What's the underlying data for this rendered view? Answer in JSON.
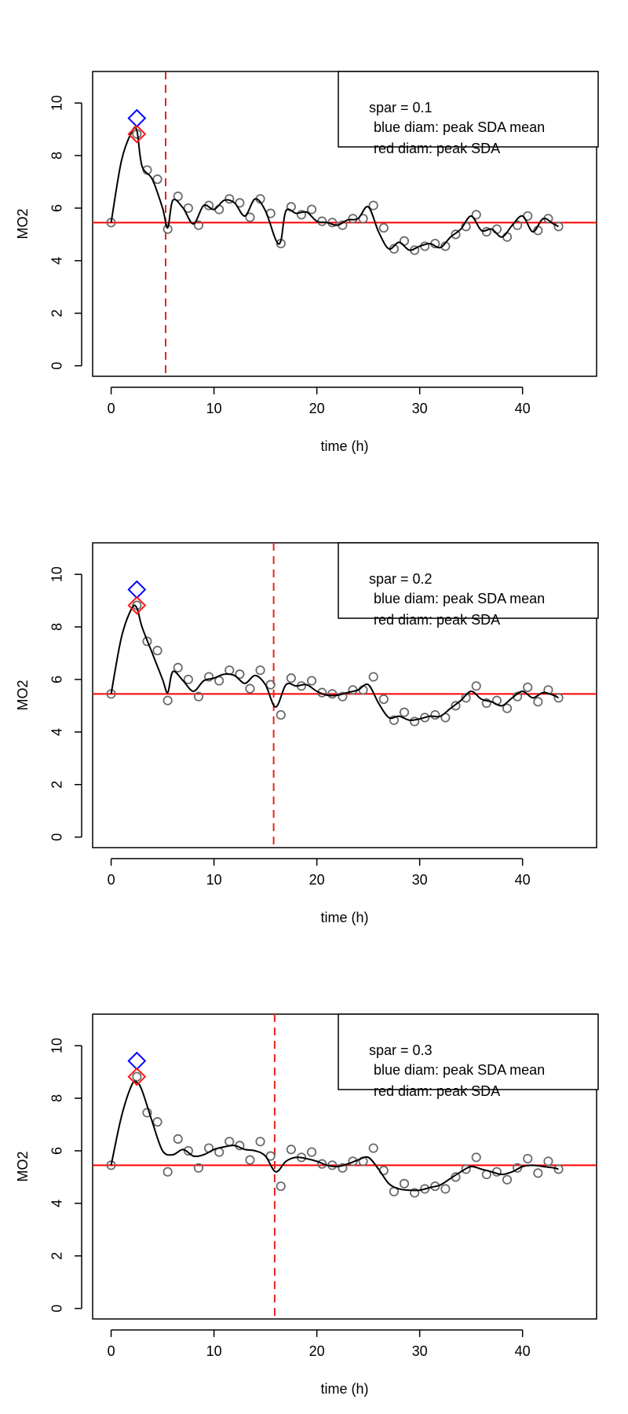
{
  "chart_data": [
    {
      "type": "scatter",
      "xlabel": "time (h)",
      "ylabel": "MO2",
      "xticks": [
        0,
        10,
        20,
        30,
        40
      ],
      "yticks": [
        0,
        2,
        4,
        6,
        8,
        10
      ],
      "xlim": [
        -1.8,
        47.2
      ],
      "ylim": [
        -0.4,
        11.2
      ],
      "baseline": 5.45,
      "vline_x": 5.3,
      "blue_diamond": {
        "x": 2.5,
        "y": 9.42
      },
      "red_diamond": {
        "x": 2.5,
        "y": 8.82
      },
      "legend": {
        "line1": "spar =  0.1",
        "line2": "blue diam: peak SDA mean",
        "line3": "red diam: peak SDA",
        "position": "top-right"
      },
      "smooth": {
        "x": [
          0,
          1,
          2,
          2.5,
          3,
          4,
          5,
          5.5,
          6,
          7,
          8,
          9,
          10,
          11,
          12,
          13,
          14,
          15,
          16,
          16.5,
          17,
          18,
          19,
          20,
          21,
          22,
          23,
          24,
          25,
          26,
          27,
          28,
          29,
          30,
          31,
          32,
          33,
          34,
          35,
          36,
          37,
          38,
          39,
          40,
          41,
          42,
          43,
          43.5
        ],
        "y": [
          5.45,
          7.8,
          8.9,
          8.95,
          7.6,
          7.1,
          6.0,
          5.25,
          6.3,
          6.0,
          5.4,
          6.1,
          5.95,
          6.3,
          6.2,
          5.7,
          6.35,
          5.9,
          4.8,
          4.75,
          5.9,
          5.8,
          5.85,
          5.5,
          5.45,
          5.35,
          5.55,
          5.6,
          6.05,
          5.1,
          4.45,
          4.7,
          4.4,
          4.55,
          4.65,
          4.5,
          4.9,
          5.2,
          5.7,
          5.15,
          5.2,
          4.9,
          5.35,
          5.7,
          5.1,
          5.6,
          5.4,
          5.3
        ]
      }
    },
    {
      "type": "scatter",
      "xlabel": "time (h)",
      "ylabel": "MO2",
      "xticks": [
        0,
        10,
        20,
        30,
        40
      ],
      "yticks": [
        0,
        2,
        4,
        6,
        8,
        10
      ],
      "xlim": [
        -1.8,
        47.2
      ],
      "ylim": [
        -0.4,
        11.2
      ],
      "baseline": 5.45,
      "vline_x": 15.8,
      "blue_diamond": {
        "x": 2.5,
        "y": 9.42
      },
      "red_diamond": {
        "x": 2.5,
        "y": 8.82
      },
      "legend": {
        "line1": "spar =  0.2",
        "line2": "blue diam: peak SDA mean",
        "line3": "red diam: peak SDA",
        "position": "top-right"
      },
      "smooth": {
        "x": [
          0,
          1,
          2,
          2.5,
          3,
          4,
          5,
          5.5,
          6,
          7,
          8,
          9,
          10,
          11,
          12,
          13,
          14,
          15,
          16,
          17,
          18,
          19,
          20,
          21,
          22,
          23,
          24,
          25,
          26,
          27,
          28,
          29,
          30,
          31,
          32,
          33,
          34,
          35,
          36,
          37,
          38,
          39,
          40,
          41,
          42,
          43,
          43.5
        ],
        "y": [
          5.45,
          7.6,
          8.7,
          8.72,
          8.0,
          7.0,
          6.0,
          5.5,
          6.3,
          5.95,
          5.55,
          5.95,
          6.05,
          6.2,
          6.15,
          5.85,
          6.15,
          5.8,
          4.95,
          5.8,
          5.75,
          5.8,
          5.55,
          5.4,
          5.4,
          5.5,
          5.6,
          5.8,
          5.1,
          4.55,
          4.6,
          4.45,
          4.5,
          4.6,
          4.6,
          4.9,
          5.2,
          5.55,
          5.25,
          5.15,
          5.0,
          5.3,
          5.55,
          5.3,
          5.5,
          5.4,
          5.3
        ]
      }
    },
    {
      "type": "scatter",
      "xlabel": "time (h)",
      "ylabel": "MO2",
      "xticks": [
        0,
        10,
        20,
        30,
        40
      ],
      "yticks": [
        0,
        2,
        4,
        6,
        8,
        10
      ],
      "xlim": [
        -1.8,
        47.2
      ],
      "ylim": [
        -0.4,
        11.2
      ],
      "baseline": 5.45,
      "vline_x": 15.9,
      "blue_diamond": {
        "x": 2.5,
        "y": 9.42
      },
      "red_diamond": {
        "x": 2.5,
        "y": 8.82
      },
      "legend": {
        "line1": "spar =  0.3",
        "line2": "blue diam: peak SDA mean",
        "line3": "red diam: peak SDA",
        "position": "top-right"
      },
      "smooth": {
        "x": [
          0,
          1,
          2,
          2.5,
          3,
          4,
          5,
          6,
          7,
          8,
          9,
          10,
          11,
          12,
          13,
          14,
          15,
          16,
          17,
          18,
          19,
          20,
          21,
          22,
          23,
          24,
          25,
          26,
          27,
          28,
          29,
          30,
          31,
          32,
          33,
          34,
          35,
          36,
          37,
          38,
          39,
          40,
          41,
          42,
          43,
          43.5
        ],
        "y": [
          5.45,
          7.3,
          8.5,
          8.6,
          8.3,
          7.1,
          6.0,
          5.85,
          6.05,
          5.8,
          5.85,
          6.05,
          6.15,
          6.2,
          6.05,
          6.0,
          5.8,
          5.2,
          5.6,
          5.75,
          5.7,
          5.6,
          5.45,
          5.4,
          5.5,
          5.65,
          5.75,
          5.3,
          4.75,
          4.55,
          4.5,
          4.5,
          4.6,
          4.7,
          4.95,
          5.2,
          5.4,
          5.3,
          5.2,
          5.1,
          5.2,
          5.4,
          5.45,
          5.4,
          5.35,
          5.3
        ]
      }
    }
  ],
  "observations": {
    "x": [
      0,
      2.5,
      3.5,
      4.5,
      5.5,
      6.5,
      7.5,
      8.5,
      9.5,
      10.5,
      11.5,
      12.5,
      13.5,
      14.5,
      15.5,
      16.5,
      17.5,
      18.5,
      19.5,
      20.5,
      21.5,
      22.5,
      23.5,
      24.5,
      25.5,
      26.5,
      27.5,
      28.5,
      29.5,
      30.5,
      31.5,
      32.5,
      33.5,
      34.5,
      35.5,
      36.5,
      37.5,
      38.5,
      39.5,
      40.5,
      41.5,
      42.5,
      43.5
    ],
    "y": [
      5.45,
      8.82,
      7.45,
      7.1,
      5.2,
      6.45,
      6.0,
      5.35,
      6.1,
      5.95,
      6.35,
      6.2,
      5.65,
      6.35,
      5.8,
      4.65,
      6.05,
      5.75,
      5.95,
      5.5,
      5.45,
      5.35,
      5.6,
      5.6,
      6.1,
      5.25,
      4.45,
      4.75,
      4.4,
      4.55,
      4.65,
      4.55,
      5.0,
      5.3,
      5.75,
      5.1,
      5.2,
      4.9,
      5.35,
      5.7,
      5.15,
      5.6,
      5.3
    ]
  },
  "colors": {
    "axis": "#000000",
    "points": "#6b6b6b",
    "smooth": "#000000",
    "baseline": "#ff0000",
    "vline": "#e8221c",
    "blue_diamond": "#0000ff",
    "red_diamond": "#ff1a1a"
  }
}
